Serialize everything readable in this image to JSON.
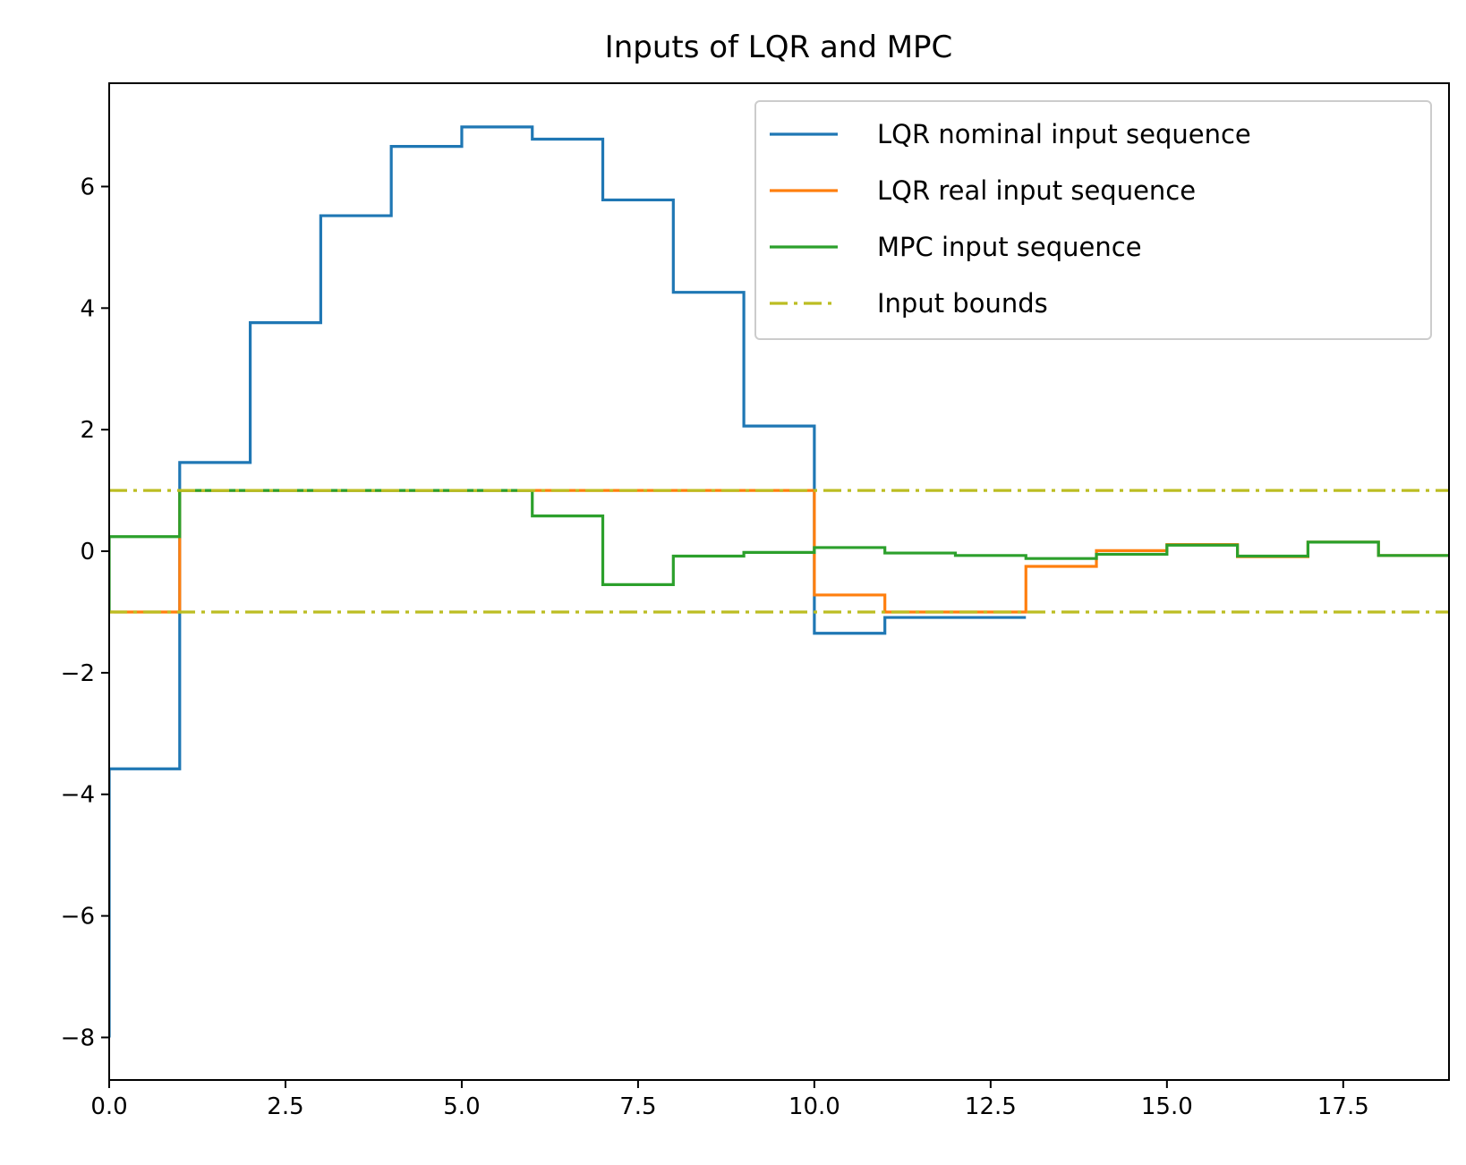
{
  "chart_data": {
    "type": "line",
    "drawstyle": "steps-pre",
    "title": "Inputs of LQR and MPC",
    "xlabel": "",
    "ylabel": "",
    "xlim": [
      0,
      19
    ],
    "ylim": [
      -8.7,
      7.7
    ],
    "x_ticks": [
      0.0,
      2.5,
      5.0,
      7.5,
      10.0,
      12.5,
      15.0,
      17.5
    ],
    "x_tick_labels": [
      "0.0",
      "2.5",
      "5.0",
      "7.5",
      "10.0",
      "12.5",
      "15.0",
      "17.5"
    ],
    "y_ticks": [
      -8,
      -6,
      -4,
      -2,
      0,
      2,
      4,
      6
    ],
    "y_tick_labels": [
      "−8",
      "−6",
      "−4",
      "−2",
      "0",
      "2",
      "4",
      "6"
    ],
    "grid": false,
    "legend_position": "upper-right",
    "series": [
      {
        "name": "LQR nominal input sequence",
        "color": "#1f77b4",
        "style": "solid",
        "x": [
          0,
          1,
          2,
          3,
          4,
          5,
          6,
          7,
          8,
          9,
          10,
          11,
          12,
          13
        ],
        "y": [
          -8.0,
          -3.58,
          1.46,
          3.76,
          5.52,
          6.66,
          6.98,
          6.78,
          5.78,
          4.26,
          2.06,
          -1.35,
          -1.09,
          -1.09
        ]
      },
      {
        "name": "LQR real input sequence",
        "color": "#ff7f0e",
        "style": "solid",
        "x": [
          0,
          1,
          2,
          3,
          4,
          5,
          6,
          7,
          8,
          9,
          10,
          11,
          12,
          13,
          14,
          15,
          16,
          17,
          18,
          19
        ],
        "y": [
          -1.0,
          -1.0,
          1.0,
          1.0,
          1.0,
          1.0,
          1.0,
          1.0,
          1.0,
          1.0,
          1.0,
          -0.72,
          -1.0,
          -1.0,
          -0.25,
          0.01,
          0.11,
          -0.09,
          0.15,
          -0.07
        ]
      },
      {
        "name": "MPC input sequence",
        "color": "#2ca02c",
        "style": "solid",
        "x": [
          0,
          1,
          2,
          3,
          4,
          5,
          6,
          7,
          8,
          9,
          10,
          11,
          12,
          13,
          14,
          15,
          16,
          17,
          18,
          19
        ],
        "y": [
          -1.0,
          0.24,
          1.0,
          1.0,
          1.0,
          1.0,
          1.0,
          0.58,
          -0.55,
          -0.08,
          -0.02,
          0.06,
          -0.03,
          -0.07,
          -0.12,
          -0.05,
          0.1,
          -0.08,
          0.15,
          -0.07
        ]
      },
      {
        "name": "Input bounds",
        "color": "#bcbd22",
        "style": "dashdot",
        "hlines": [
          1.0,
          -1.0
        ]
      }
    ]
  }
}
